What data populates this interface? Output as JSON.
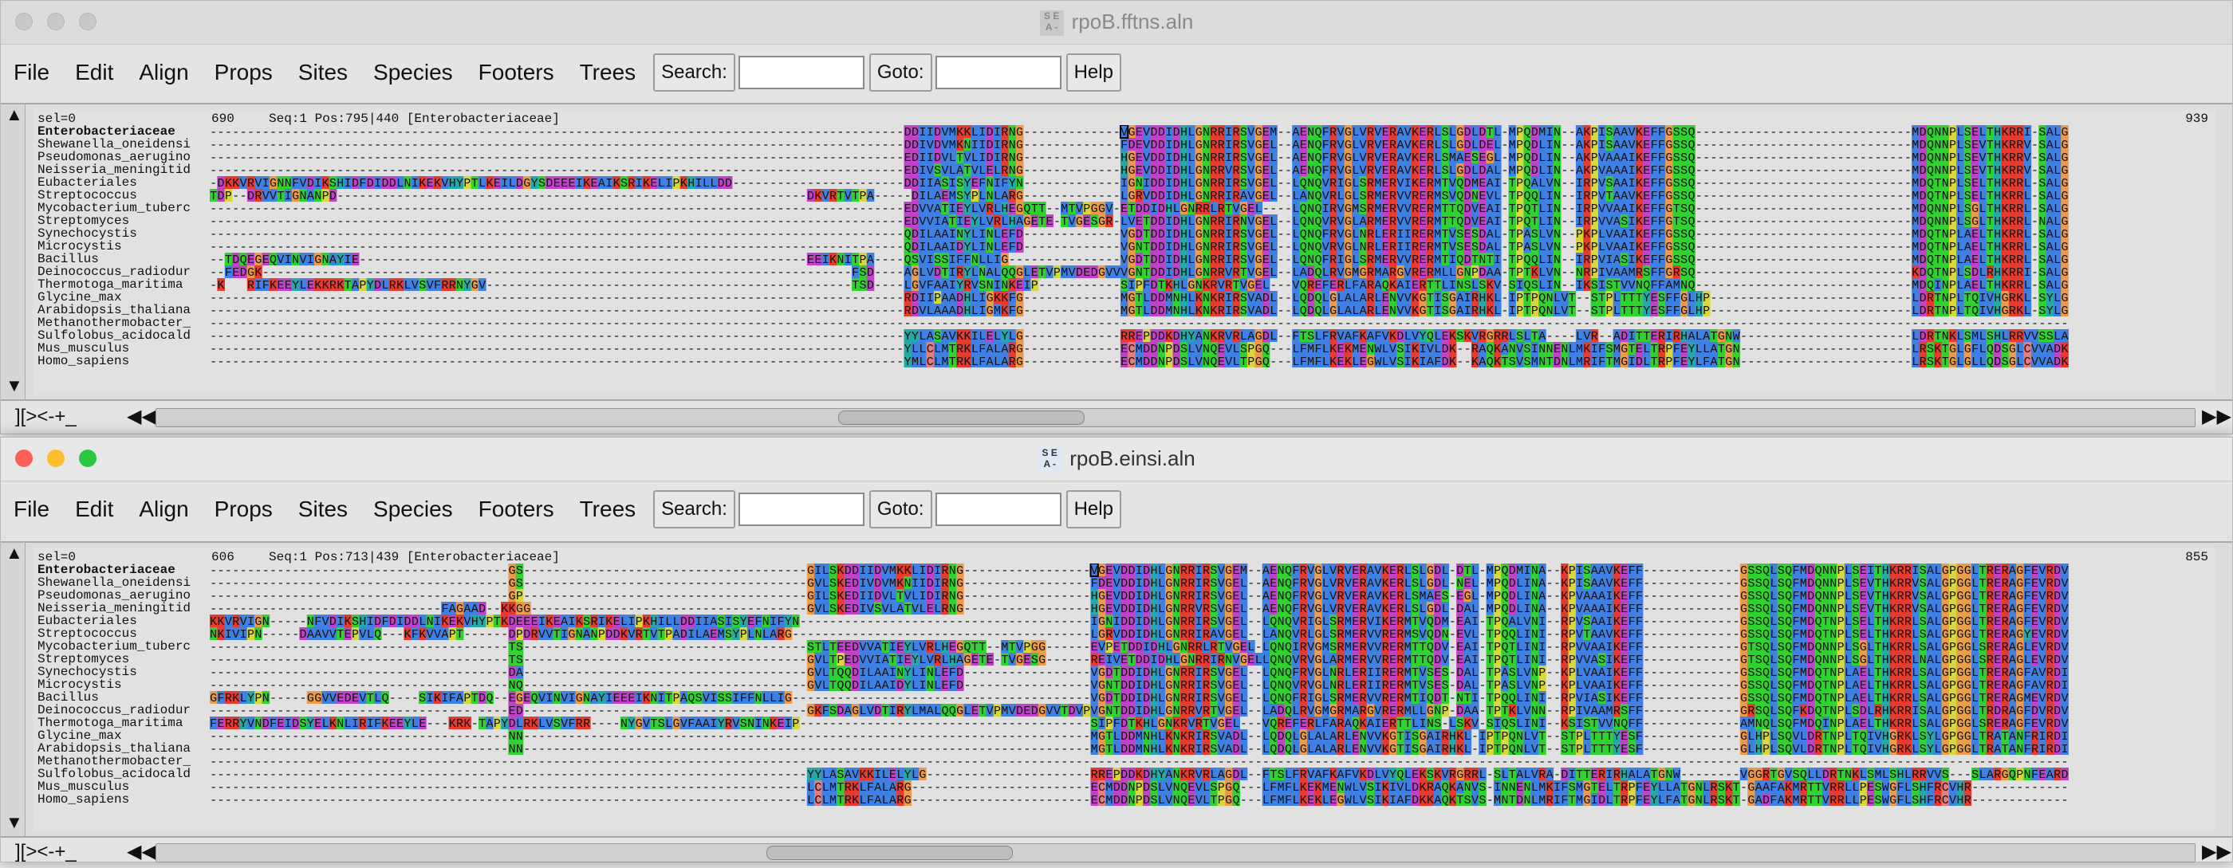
{
  "species": [
    "Enterobacteriaceae",
    "Shewanella_oneidensi",
    "Pseudomonas_aerugino",
    "Neisseria_meningitid",
    "Eubacteriales",
    "Streptococcus",
    "Mycobacterium_tuberc",
    "Streptomyces",
    "Synechocystis",
    "Microcystis",
    "Bacillus",
    "Deinococcus_radiodur",
    "Thermotoga_maritima",
    "Glycine_max",
    "Arabidopsis_thaliana",
    "Methanothermobacter_",
    "Sulfolobus_acidocald",
    "Mus_musculus",
    "Homo_sapiens"
  ],
  "residue_colors": {
    "A": "#3f80e4",
    "I": "#3f80e4",
    "L": "#3f80e4",
    "M": "#3f80e4",
    "F": "#3f80e4",
    "W": "#3f80e4",
    "V": "#3f80e4",
    "C": "#e67c7c",
    "K": "#e83a2e",
    "R": "#e83a2e",
    "E": "#c142c9",
    "D": "#c142c9",
    "N": "#2fd22f",
    "Q": "#2fd22f",
    "S": "#2fd22f",
    "T": "#2fd22f",
    "G": "#eb9b4a",
    "P": "#d8d83c",
    "H": "#24a8a8",
    "Y": "#24a8a8"
  },
  "menus": [
    "File",
    "Edit",
    "Align",
    "Props",
    "Sites",
    "Species",
    "Footers",
    "Trees"
  ],
  "toolbar": {
    "search_label": "Search:",
    "goto_label": "Goto:",
    "help_label": "Help"
  },
  "window1": {
    "title": "rpoB.fftns.aln",
    "icon_letters": "S E A -",
    "sel": "sel=0",
    "start_pos": "690",
    "position_info": "Seq:1 Pos:795|440 [Enterobacteriaceae]",
    "end_pos": "939",
    "bottom_label": "][><-+_",
    "scroll_fraction": 0.38,
    "blocks": [
      {
        "start": 0,
        "rows": {
          "4": "-DKKVRVIGNNFVDIKSHIDFDIDDLNIKEKVHYPTLKEILDGYSDEEEIKEAIKSRIKELIPKHILLDD",
          "5": "TDP--DRVVTIGNANPD-",
          "12": "-KNLIRIFKEEYLEKKRKTAPYDLRKLVSVFRRNYGV"
        }
      },
      {
        "start": 80,
        "rows": {
          "5": "DKVRTVTPA",
          "10": "EEIKNITPA"
        }
      },
      {
        "start": 2,
        "rows": {
          "10": "TDQEGEQVINVIGNAYIE",
          "11": "FEDGK",
          "12": "   "
        }
      },
      {
        "start": 86,
        "rows": {
          "11": "FSD",
          "12": "TSD"
        }
      },
      {
        "start": 93,
        "rows": {
          "0": "DDIIDVMKKLIDIRNG",
          "1": "DDIVDVMKNIIDIRNG",
          "2": "EDIIDVLTVLIDIRNG",
          "3": "EDIVSVLATVLELRNG",
          "4": "DDIIASISYEFNIFYN",
          "5": "-DILAEMSYPLNLARG",
          "6": "EDVVATIEYLVRLHEGQTT--MTVPGGV--EVP",
          "7": "EDVVIATIEYLVRLHAGETE-TVGESGR--EIV",
          "8": "QDILAAINYLINLEFD",
          "9": "QDILAAIDYLINLEFD",
          "10": "QSVISSIFFNLLIG",
          "11": "AGLVDTIRYLNALQQGLETVPMVDEDGVVTDVP",
          "12": "LGVFAAIYRVSNINKEIP",
          "13": "RDIIPAADHLIGKKFG",
          "14": "RDVLAAADHLIGMKFG",
          "16": "YYLASAVKKILELYLG",
          "17": "YLLCLMTRKLFALARG",
          "18": "YMLCLMTRKLFALARG"
        }
      },
      {
        "start": 122,
        "rows": {
          "0": "VGEVDDIDHLGNRRIRSVGEM",
          "1": "FDEVDDIDHLGNRRIRSVGEL",
          "2": "HGEVDDIDHLGNRRIRSVGEL",
          "3": "HGEVDDIDHLGNRRVRSVGEL",
          "4": "IGNIDDIDHLGNRRIRSVGEL",
          "5": "LGRVDDIDHLGNRRIRAVGEL",
          "6": "ETDDIDHLGNRRLRTVGEL",
          "7": "LVETDDIDHLGNRRIRNVGEL",
          "8": "VGDTDDIDHLGNRRIRSVGEL",
          "9": "VGNTDDIDHLGNRRIRSVGEL",
          "10": "VGDTDDIDHLGNRRIRSVGEL",
          "11": "VGNTDDIDHLGNRRVRTVGEL",
          "12": "SIPFDTKHLGNKRVRTVGEL",
          "13": "MGTLDDMNHLKNKRIRSVADL",
          "14": "MGTLDDMNHLKNKRIRSVADL",
          "16": "RREPDDKDHYANKRVRLAGDL",
          "17": "ECMDDNPDSLVNQEVLSPGQ",
          "18": "ECMDDNPDSLVNQEVLTPGQ"
        }
      },
      {
        "start": 145,
        "rows": {
          "0": "AENQFRVGLVRVERAVKERLSLGDLDTL-MPQDMIN--AKPISAAVKEFFGSSQ",
          "1": "AENQFRVGLVRVERAVKERLSLGDLDEL-MPQDLIN--AKPISAAVKEFFGSSQ",
          "2": "AENQFRVGLVRVERAVKERLSMAESEGL-MPQDLIN--AKPVAAAIKEFFGSSQ",
          "3": "AENQFRVGLVRVERAVKERLSLGDLDAL-MPQDLIN--AKPVAAAIKEFFGSSQ",
          "4": "LQNQVRIGLSRMERVIKERMTVQDMEAI-TPQALVN--IRPVSAAIKEFFGSSQ",
          "5": "LANQVRLGLSRMERVVRERMSVQDNEVL-TPQQLIN--IRPVTAAVKEFFGSSQ",
          "6": "LQNQIRVGMSRMERVVRERMTTQDVEAI-TPQTLIN--IRPVVAAIKEFFGTSQ",
          "7": "LQNQVRVGLARMERVVRERMTTQDVEAI-TPQTLIN--IRPVVASIKEFFGTSQ",
          "8": "LQNQFRVGLNRLERIIRERMTVSESDAL-TPASLVN--PKPLVAAIKEFFGSSQ",
          "9": "LQNQVRVGLNRLERIIRERMTVSESDAL-TPASLVN--PKPLVAAIKEFFGSSQ",
          "10": "LQNQFRIGLSRMERVVRERMTIQDTNTI-TPQQLIN--IRPVIASIKEFFGSSQ",
          "11": "LADQLRVGMGRMARGVRERMLLGNPDAA-TPTKLVN--NRPIVAAMRSFFGRSQ",
          "12": "VQREFERLFARAQKAIERTTLINSLSKV-SIQSLIN--IKSISTVVNQFFAMNQ",
          "13": "LQDQLGLALARLENVVKGTISGAIRHKL-IPTPQNLVT--STPLTTTYESFFGLHP",
          "14": "LQDQLGLALARLENVVKGTISGAIRHKL-IPTPQNLVT--STPLTTTYESFFGLHP",
          "16": "FTSLFRVAFKAFVKDLVYQLEKSKVRGRRLSLTA----LVR--ADITTERIRHALATGNW",
          "17": "LFMFLKEKMENWLVSIKIVLDK--RAQKANVSINNENLMKIFSMGTELTRPFEYLLATGN",
          "18": "LFMFLKEKLEGWLVSIKIAFDK--KAQKTSVSMNTDNLMRIFTMGIDLTRPFEYLFATGN"
        }
      },
      {
        "start": 228,
        "rows": {
          "0": "MDQNNPLSELTHKRRI-SALGPGGLTRERAGFEVRDVHPTHYGRV",
          "1": "MDQNNPLSEVTHKRRV-SALGPGGLTRERAGFEVRDVHPTHYGRV",
          "2": "MDQNNPLSEVTHKRRV-SALGPGGLTRERAGFEVRDVHPTHYGRV",
          "3": "MDQNNPLSEVTHKRRV-SALGPGGLTRERAGFEVRDVHPTHYGRV",
          "4": "MDQTNPLSELTHKRRL-SALGPGGLTRERAGFEVRDVHHSHYGRM",
          "5": "MDQTNPLSELTHKRRL-SALGPGGLTRERAGYEVRDVHPSHYGRI",
          "6": "MDQNNPLSGLTHKRRL-SALGPGGLSRERAGLEVRDVHPSHYGRM",
          "7": "MDQNNPLSGLTHKRRL-NALGPGGLSRERAGLEVRDVHPSHYGRM",
          "8": "MDQTNPLAELTHKRRL-SALGPGGLTRERAGFAVRDIHPSHYGRI",
          "9": "MDQTNPLAELTHKRRL-SALGPGGLTRERAGFAVRDIHPSHYGRI",
          "10": "MDQTNPLAELTHKRRL-SALGPGGLTRERAGMEVRDVHYSHYGRM",
          "11": "KDQTNPLSDLRHKRRI-SALGPGGLTRDRAGFDVRDVHRTHYGRI",
          "12": "MDQINPLAELTHKRRL-SALGPGGLSRERAGFEVRDVHPSHYGRI",
          "13": "LDRTNPLTQIVHGRKL-SYLGPGGLTRATANFRIRDIHPSHYGRI",
          "14": "LDRTNPLTQIVHGRKL-SYLGPGGLTRATANFRIRDIHPSHYGRI",
          "16": "LDRTNKLSMLSHLRRVVSSLARGQP---NFEARDLHGTQWGRI",
          "17": "LRSKTGLGFLQDSGLCVVADKLNFLRYLSHFRCVHR-GAAFAKMRTTVRRLLPESWGF",
          "18": "LRSKTGLGLLQDSGLCVVADKLNFIRYLSHFRCV---HRGADFAKMRTTVRRLLPESWGF"
        }
      }
    ]
  },
  "window2": {
    "title": "rpoB.einsi.aln",
    "icon_letters": "S E A -",
    "sel": "sel=0",
    "start_pos": "606",
    "position_info": "Seq:1 Pos:713|439 [Enterobacteriaceae]",
    "end_pos": "855",
    "bottom_label": "][><-+_",
    "scroll_fraction": 0.34,
    "blocks": [
      {
        "start": 0,
        "rows": {
          "4": "KKVRVIGN-----NFVDIKSHIDFDIDDLNIKEKVHYPTKEILDGYS",
          "5": "NKIVIPN-----DAAVVTEPVLQ---KFKVVAPT",
          "10": "GFRKLYPN-----GGVVEDEVTLQ----SIKIFAPTDQ",
          "12": "FERRYVNDFEIDSYELKNLIRIFKEEYLE---KRK-TAPY-"
        }
      },
      {
        "start": 31,
        "rows": {
          "3": "FAGAAD--KGG"
        }
      },
      {
        "start": 40,
        "rows": {
          "0": "GS",
          "1": "GS",
          "2": "GP",
          "3": "KGG",
          "4": "DEEEIKEAIKSRIKELIPKHILLDDIIASISYEFNIFYN",
          "5": "DPDRVVTIGNANPDDKVRTVTPADILAEMSYPLNLARG",
          "6": "TS",
          "7": "TS",
          "8": "DA",
          "9": "NQ",
          "10": "EGEQVINVIGNAYIEEEIKNITPAQSVISSIFFNLLIG",
          "11": "ED",
          "12": "DLRKLVSVFRR----NYGVTSLGVFAAIYRVSNINKEIP",
          "13": "NN",
          "14": "NN"
        }
      },
      {
        "start": 80,
        "rows": {
          "0": "GILSKDDIIDVMKKLIDIRNG",
          "1": "GVLSKEDIVDVMKNIIDIRNG",
          "2": "GILSKEDIIDVLTVLIDIRNG",
          "3": "GVLSKEDIVSVLATVLELRNG",
          "6": "STLTEEDVVATIEYLVRLHEGQTT--MTVPGG",
          "7": "GVLTPEDVVIATIEYLVRLHAGETE-TVGESG",
          "8": "GVLTQQDILAAINYLINLEFD",
          "9": "GVLTQQDILAAIDYLINLEFD",
          "11": "GKFSDAGLVDTIRYLMALQQGLETVPMVDEDGVVTDVP",
          "16": "YYLASAVKKILELYLG",
          "17": "LCLMTRKLFALARG",
          "18": "LCLMTRKLFALARG"
        }
      },
      {
        "start": 118,
        "rows": {
          "0": "VGEVDDIDHLGNRRIRSVGEM",
          "1": "FDEVDDIDHLGNRRIRSVGEL",
          "2": "HGEVDDIDHLGNRRIRSVGEL",
          "3": "HGEVDDIDHLGNRRVRSVGEL",
          "4": "IGNIDDIDHLGNRRIRSVGEL",
          "5": "LGRVDDIDHLGNRRIRAVGEL",
          "6": "EVPETDDIDHLGNRRLRTVGEL",
          "7": "REIVETDDIDHLGNRRIRNVGEL",
          "8": "VGDTDDIDHLGNRRIRSVGEL",
          "9": "VGNTDDIDHLGNRRIRSVGEL",
          "10": "VGDTDDIDHLGNRRIRSVGEL",
          "11": "VGNTDDIDHLGNRRVRTVGEL",
          "12": "SIPFDTKHLGNKRVRTVGEL",
          "13": "MGTLDDMNHLKNKRIRSVADL",
          "14": "MGTLDDMNHLKNKRIRSVADL",
          "16": "RREPDDKDHYANKRVRLAGDL",
          "17": "ECMDDNPDSLVNQEVLSPGQ",
          "18": "ECMDDNPDSLVNQEVLTPGQ"
        }
      },
      {
        "start": 141,
        "rows": {
          "0": "AENQFRVGLVRVERAVKERLSLGDL-DTL-MPQDMINA--KPISAAVKEFF",
          "1": "AENQFRVGLVRVERAVKERLSLGDL-NEL-MPQDLINA--KPISAAVKEFF",
          "2": "AENQFRVGLVRVERAVKERLSMAES-EGL-MPQDLINA--KPVAAAIKEFF",
          "3": "AENQFRVGLVRVERAVKERLSLGDL-DAL-MPQDLINA--KPVAAAIKEFF",
          "4": "LQNQVRIGLSRMERVIKERMTVQDM-EAI-TPQALVNI--RPVSAAIKEFF",
          "5": "LANQVRLGLSRMERVVRERMSVQDN-EVL-TPQQLINI--RPVTAAVKEFF",
          "6": "LQNQIRVGMSRMERVVRERMTTQDV-EAI-TPQTLINI--RPVVAAIKEFF",
          "7": "LQNQVRVGLARMERVVRERMTTQDV-EAI-TPQTLINI--RPVVASIKEFF",
          "8": "LQNQFRVGLNRLERIIRERMTVSES-DAL-TPASLVNP--KPLVAAIKEFF",
          "9": "LQNQVRVGLNRLERIIRERMTVSES-DAL-TPASLVNP--KPLVAAIKEFF",
          "10": "LQNQFRIGLSRMERVVRERMTIQDT-NTI-TPQQLINI--RPVIASIKEFF",
          "11": "LADQLRVGMGRMARGVRERMLLGNP-DAA-TPTKLVNN--RPIVAAMRSFF",
          "12": "VQREFERLFARAQKAIERTTLINS-LSKV-SIQSLINI--KSISTVVNQFF",
          "13": "LQDQLGLALARLENVVKGTISGAIRHKL-IPTPQNLVT--STPLTTTYESF",
          "14": "LQDQLGLALARLENVVKGTISGAIRHKL-IPTPQNLVT--STPLTTTYESF",
          "16": "FTSLFRVAFKAFVKDLVYQLEKSKVRGRRL-SLTALVRA-DITTERIRHALATGNW",
          "17": "LFMFLKEKMENWLVSIKIVLDKRAQKANVS-INNENLMKIFSMGTELTRPFEYLLATGNLRSKTGLGFLQDSGLCVVADKLNFLRYLSHFRCVHR",
          "18": "LFMFLKEKLEGWLVSIKIAFDKKAQKTSVS-MNTDNLMRIFTMGIDLTRPFEYLFATGNLRSKTGLGLLQDSGLCVVADKLNFIRYLSHFRCVHR"
        }
      },
      {
        "start": 205,
        "rows": {
          "0": "GSSQLSQFMDQNNPLSEITHKRRISALGPGGLTRERAGFEVRDVHPTHY",
          "1": "GSSQLSQFMDQNNPLSEVTHKRRVSALGPGGLTRERAGFEVRDVHPTHY",
          "2": "GSSQLSQFMDQNNPLSEVTHKRRVSALGPGGLTRERAGFEVRDVHPTHY",
          "3": "GSSQLSQFMDQNNPLSEVTHKRRVSALGPGGLTRERAGFEVRDVHPTHY",
          "4": "GSSQLSQFMDQTNPLSELTHKRRLSALGPGGLTRERAGFEVRDVHHSHY",
          "5": "GSSQLSQFMDQTNPLSELTHKRRLSALGPGGLTRERAGYEVRDVHPSHY",
          "6": "GTSQLSQFMDQNNPLSGLTHKRRLSALGPGGLSRERAGLEVRDVHPSHY",
          "7": "GTSQLSQFMDQNNPLSGLTHKRRLNALGPGGLSRERAGLEVRDVHPSHY",
          "8": "GSSQLSQFMDQTNPLAELTHKRRLSALGPGGLTRERAGFAVRDIHPSHY",
          "9": "GSSQLSQFMDQTNPLAELTHKRRLSALGPGGLTRERAGFAVRDIHPSHY",
          "10": "GSSQLSQFMDQTNPLAELTHKRRLSALGPGGLTRERAGMEVRDVHYSHY",
          "11": "GRSQLSQFKDQTNPLSDLRHKRRISALGPGGLTRDRAGFDVRDVHRTHY",
          "12": "AMNQLSQFMDQINPLAELTHKRRLSALGPGGLSRERAGFEVRDVHPSHY",
          "13": "GLHPLSQVLDRTNPLTQIVHGRKLSYLGPGGLTRATANFRIRDIHPSHY",
          "14": "GLHPLSQVLDRTNPLTQIVHGRKLSYLGPGGLTRATANFRIRDIHPSHY",
          "16": "VGGRTGVSQLLDRTNKLSMLSHLRRVVS---SLARGQPNFEARDLHGTQWGRI",
          "17": "-GAAFAKMRTTVRRLLPESWGF",
          "18": "-GADFAKMRTTVRRLLPESWGF"
        }
      }
    ]
  }
}
